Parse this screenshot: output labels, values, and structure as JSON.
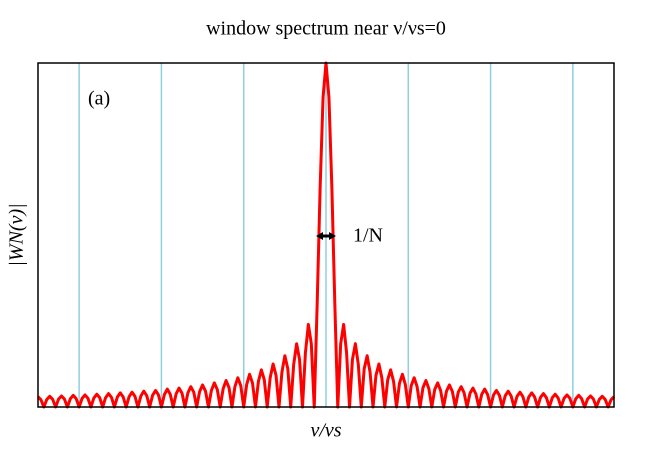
{
  "chart_data": {
    "type": "line",
    "title": "window spectrum near ν/νs=0",
    "x_label": "ν/νs",
    "y_label": "|WN(ν)|",
    "annotations": [
      "(a)",
      "1/N"
    ],
    "xlim": [
      -24.5,
      24.5
    ],
    "ylim": [
      0,
      1
    ],
    "xticks": [
      -21,
      -14,
      -7,
      0,
      7,
      14,
      21
    ],
    "grid_color": "#8fcfe0",
    "x": [
      -24.5,
      -24.25,
      -24,
      -23.75,
      -23.5,
      -23.25,
      -23,
      -22.75,
      -22.5,
      -22.25,
      -22,
      -21.75,
      -21.5,
      -21.25,
      -21,
      -20.75,
      -20.5,
      -20.25,
      -20,
      -19.75,
      -19.5,
      -19.25,
      -19,
      -18.75,
      -18.5,
      -18.25,
      -18,
      -17.75,
      -17.5,
      -17.25,
      -17,
      -16.75,
      -16.5,
      -16.25,
      -16,
      -15.75,
      -15.5,
      -15.25,
      -15,
      -14.75,
      -14.5,
      -14.25,
      -14,
      -13.75,
      -13.5,
      -13.25,
      -13,
      -12.75,
      -12.5,
      -12.25,
      -12,
      -11.75,
      -11.5,
      -11.25,
      -11,
      -10.75,
      -10.5,
      -10.25,
      -10,
      -9.75,
      -9.5,
      -9.25,
      -9,
      -8.75,
      -8.5,
      -8.25,
      -8,
      -7.75,
      -7.5,
      -7.25,
      -7,
      -6.75,
      -6.5,
      -6.25,
      -6,
      -5.75,
      -5.5,
      -5.25,
      -5,
      -4.75,
      -4.5,
      -4.25,
      -4,
      -3.75,
      -3.5,
      -3.25,
      -3,
      -2.75,
      -2.5,
      -2.25,
      -2,
      -1.75,
      -1.5,
      -1.25,
      -1,
      -0.75,
      -0.5,
      -0.25,
      0,
      0.25,
      0.5,
      0.75,
      1,
      1.25,
      1.5,
      1.75,
      2,
      2.25,
      2.5,
      2.75,
      3,
      3.25,
      3.5,
      3.75,
      4,
      4.25,
      4.5,
      4.75,
      5,
      5.25,
      5.5,
      5.75,
      6,
      6.25,
      6.5,
      6.75,
      7,
      7.25,
      7.5,
      7.75,
      8,
      8.25,
      8.5,
      8.75,
      9,
      9.25,
      9.5,
      9.75,
      10,
      10.25,
      10.5,
      10.75,
      11,
      11.25,
      11.5,
      11.75,
      12,
      12.25,
      12.5,
      12.75,
      13,
      13.25,
      13.5,
      13.75,
      14,
      14.25,
      14.5,
      14.75,
      15,
      15.25,
      15.5,
      15.75,
      16,
      16.25,
      16.5,
      16.75,
      17,
      17.25,
      17.5,
      17.75,
      18,
      18.25,
      18.5,
      18.75,
      19,
      19.25,
      19.5,
      19.75,
      20,
      20.25,
      20.5,
      20.75,
      21,
      21.25,
      21.5,
      21.75,
      22,
      22.25,
      22.5,
      22.75,
      23,
      23.25,
      23.5,
      23.75,
      24,
      24.25,
      24.5
    ],
    "series": [
      {
        "color": "#ff0000",
        "values": [
          0.03,
          0.021,
          0,
          0.022,
          0.031,
          0.022,
          0,
          0.023,
          0.032,
          0.023,
          0,
          0.024,
          0.034,
          0.024,
          0,
          0.025,
          0.035,
          0.025,
          0,
          0.026,
          0.037,
          0.027,
          0,
          0.027,
          0.039,
          0.028,
          0,
          0.029,
          0.041,
          0.029,
          0,
          0.03,
          0.043,
          0.031,
          0,
          0.032,
          0.046,
          0.033,
          0,
          0.034,
          0.048,
          0.035,
          0,
          0.036,
          0.052,
          0.037,
          0,
          0.038,
          0.055,
          0.04,
          0,
          0.041,
          0.059,
          0.043,
          0,
          0.045,
          0.064,
          0.046,
          0,
          0.048,
          0.07,
          0.051,
          0,
          0.053,
          0.077,
          0.056,
          0,
          0.059,
          0.085,
          0.062,
          0,
          0.065,
          0.095,
          0.069,
          0,
          0.074,
          0.108,
          0.079,
          0,
          0.085,
          0.125,
          0.092,
          0,
          0.101,
          0.149,
          0.111,
          0,
          0.123,
          0.184,
          0.138,
          0,
          0.158,
          0.24,
          0.184,
          0,
          0.3,
          0.637,
          0.9,
          1,
          0.9,
          0.637,
          0.3,
          0,
          0.184,
          0.24,
          0.158,
          0,
          0.138,
          0.184,
          0.123,
          0,
          0.111,
          0.149,
          0.101,
          0,
          0.092,
          0.125,
          0.085,
          0,
          0.079,
          0.108,
          0.074,
          0,
          0.069,
          0.095,
          0.065,
          0,
          0.062,
          0.085,
          0.059,
          0,
          0.056,
          0.077,
          0.053,
          0,
          0.051,
          0.07,
          0.048,
          0,
          0.046,
          0.064,
          0.045,
          0,
          0.043,
          0.059,
          0.041,
          0,
          0.04,
          0.055,
          0.038,
          0,
          0.037,
          0.052,
          0.036,
          0,
          0.035,
          0.048,
          0.034,
          0,
          0.033,
          0.046,
          0.032,
          0,
          0.031,
          0.043,
          0.03,
          0,
          0.029,
          0.041,
          0.029,
          0,
          0.028,
          0.039,
          0.027,
          0,
          0.027,
          0.037,
          0.026,
          0,
          0.025,
          0.035,
          0.025,
          0,
          0.024,
          0.034,
          0.024,
          0,
          0.023,
          0.032,
          0.023,
          0,
          0.022,
          0.031,
          0.022,
          0,
          0.021,
          0.03
        ]
      }
    ]
  }
}
